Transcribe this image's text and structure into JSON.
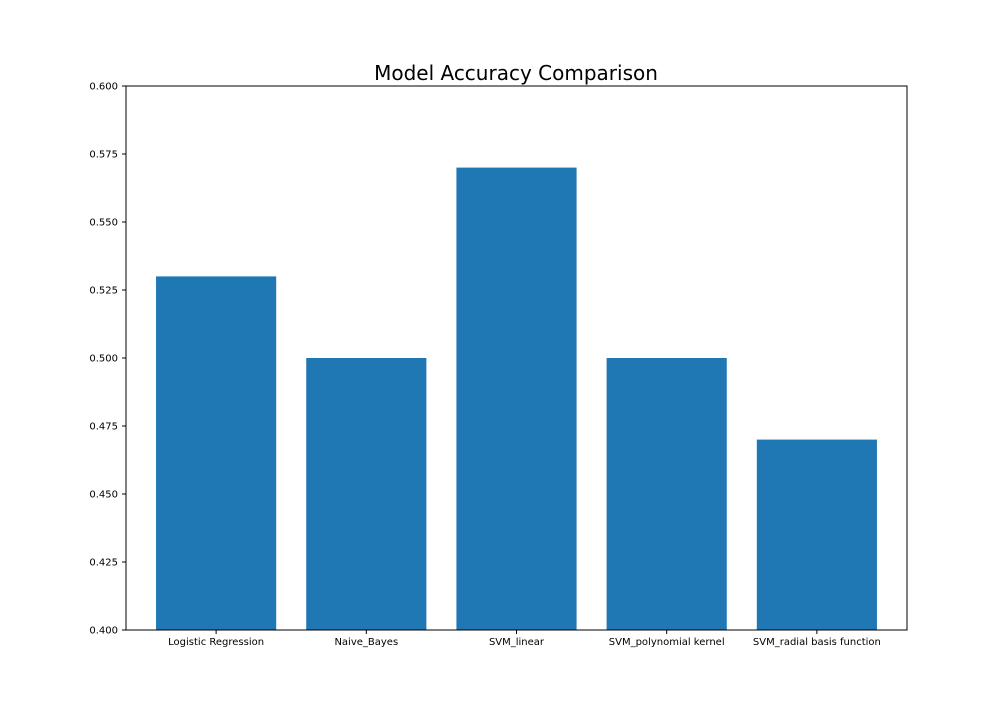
{
  "colors": {
    "bar": "#1f77b4",
    "axis": "#000000",
    "background": "#ffffff"
  },
  "chart_data": {
    "type": "bar",
    "title": "Model Accuracy Comparison",
    "xlabel": "",
    "ylabel": "",
    "categories": [
      "Logistic Regression",
      "Naive_Bayes",
      "SVM_linear",
      "SVM_polynomial kernel",
      "SVM_radial basis function"
    ],
    "values": [
      0.53,
      0.5,
      0.57,
      0.5,
      0.47
    ],
    "ylim": [
      0.4,
      0.6
    ],
    "yticks": [
      "0.400",
      "0.425",
      "0.450",
      "0.475",
      "0.500",
      "0.525",
      "0.550",
      "0.575",
      "0.600"
    ],
    "grid": false,
    "legend": "none"
  }
}
